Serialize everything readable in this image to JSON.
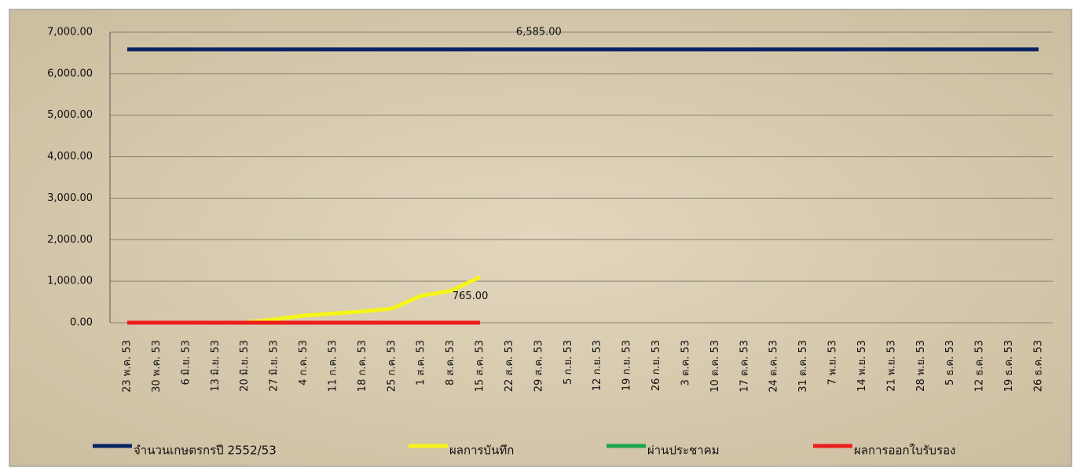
{
  "chart_data": {
    "type": "line",
    "categories": [
      "23 พ.ค. 53",
      "30 พ.ค. 53",
      "6 มิ.ย. 53",
      "13 มิ.ย. 53",
      "20 มิ.ย. 53",
      "27 มิ.ย. 53",
      "4 ก.ค. 53",
      "11 ก.ค. 53",
      "18 ก.ค. 53",
      "25 ก.ค. 53",
      "1 ส.ค. 53",
      "8 ส.ค. 53",
      "15 ส.ค. 53",
      "22 ส.ค. 53",
      "29 ส.ค. 53",
      "5 ก.ย. 53",
      "12 ก.ย. 53",
      "19 ก.ย. 53",
      "26 ก.ย. 53",
      "3 ต.ค. 53",
      "10 ต.ค. 53",
      "17 ต.ค. 53",
      "24 ต.ค. 53",
      "31 ต.ค. 53",
      "7 พ.ย. 53",
      "14 พ.ย. 53",
      "21 พ.ย. 53",
      "28 พ.ย. 53",
      "5 ธ.ค. 53",
      "12 ธ.ค. 53",
      "19 ธ.ค. 53",
      "26 ธ.ค. 53"
    ],
    "series": [
      {
        "name": "จำนวนเกษตรกรปี  2552/53",
        "color": "#0b2463",
        "values": [
          6585,
          6585,
          6585,
          6585,
          6585,
          6585,
          6585,
          6585,
          6585,
          6585,
          6585,
          6585,
          6585,
          6585,
          6585,
          6585,
          6585,
          6585,
          6585,
          6585,
          6585,
          6585,
          6585,
          6585,
          6585,
          6585,
          6585,
          6585,
          6585,
          6585,
          6585,
          6585
        ],
        "value_labels": [
          null,
          null,
          null,
          null,
          null,
          null,
          null,
          null,
          null,
          null,
          null,
          null,
          null,
          null,
          "6,585.00",
          null,
          null,
          null,
          null,
          null,
          null,
          null,
          null,
          null,
          null,
          null,
          null,
          null,
          null,
          null,
          null,
          null
        ]
      },
      {
        "name": "ผลการบันทึก",
        "color": "#f5f51a",
        "values": [
          0,
          0,
          0,
          0,
          0,
          80,
          170,
          220,
          270,
          340,
          650,
          765,
          1100,
          null,
          null,
          null,
          null,
          null,
          null,
          null,
          null,
          null,
          null,
          null,
          null,
          null,
          null,
          null,
          null,
          null,
          null,
          null
        ],
        "value_labels": [
          null,
          null,
          null,
          null,
          null,
          null,
          null,
          null,
          null,
          null,
          null,
          "765.00",
          null,
          null,
          null,
          null,
          null,
          null,
          null,
          null,
          null,
          null,
          null,
          null,
          null,
          null,
          null,
          null,
          null,
          null,
          null,
          null
        ]
      },
      {
        "name": "ผ่านประชาคม",
        "color": "#1aa64a",
        "values": [
          0,
          0,
          0,
          0,
          0,
          0,
          0,
          0,
          0,
          0,
          0,
          0,
          0,
          null,
          null,
          null,
          null,
          null,
          null,
          null,
          null,
          null,
          null,
          null,
          null,
          null,
          null,
          null,
          null,
          null,
          null,
          null
        ]
      },
      {
        "name": "ผลการออกใบรับรอง",
        "color": "#ee1c1c",
        "values": [
          0,
          0,
          0,
          0,
          0,
          0,
          0,
          0,
          0,
          0,
          0,
          0,
          0,
          null,
          null,
          null,
          null,
          null,
          null,
          null,
          null,
          null,
          null,
          null,
          null,
          null,
          null,
          null,
          null,
          null,
          null,
          null
        ]
      }
    ],
    "ylim": [
      0,
      7000
    ],
    "yticks": [
      {
        "value": 0,
        "label": "0.00"
      },
      {
        "value": 1000,
        "label": "1,000.00"
      },
      {
        "value": 2000,
        "label": "2,000.00"
      },
      {
        "value": 3000,
        "label": "3,000.00"
      },
      {
        "value": 4000,
        "label": "4,000.00"
      },
      {
        "value": 5000,
        "label": "5,000.00"
      },
      {
        "value": 6000,
        "label": "6,000.00"
      },
      {
        "value": 7000,
        "label": "7,000.00"
      }
    ],
    "grid": true,
    "legend": "bottom"
  }
}
